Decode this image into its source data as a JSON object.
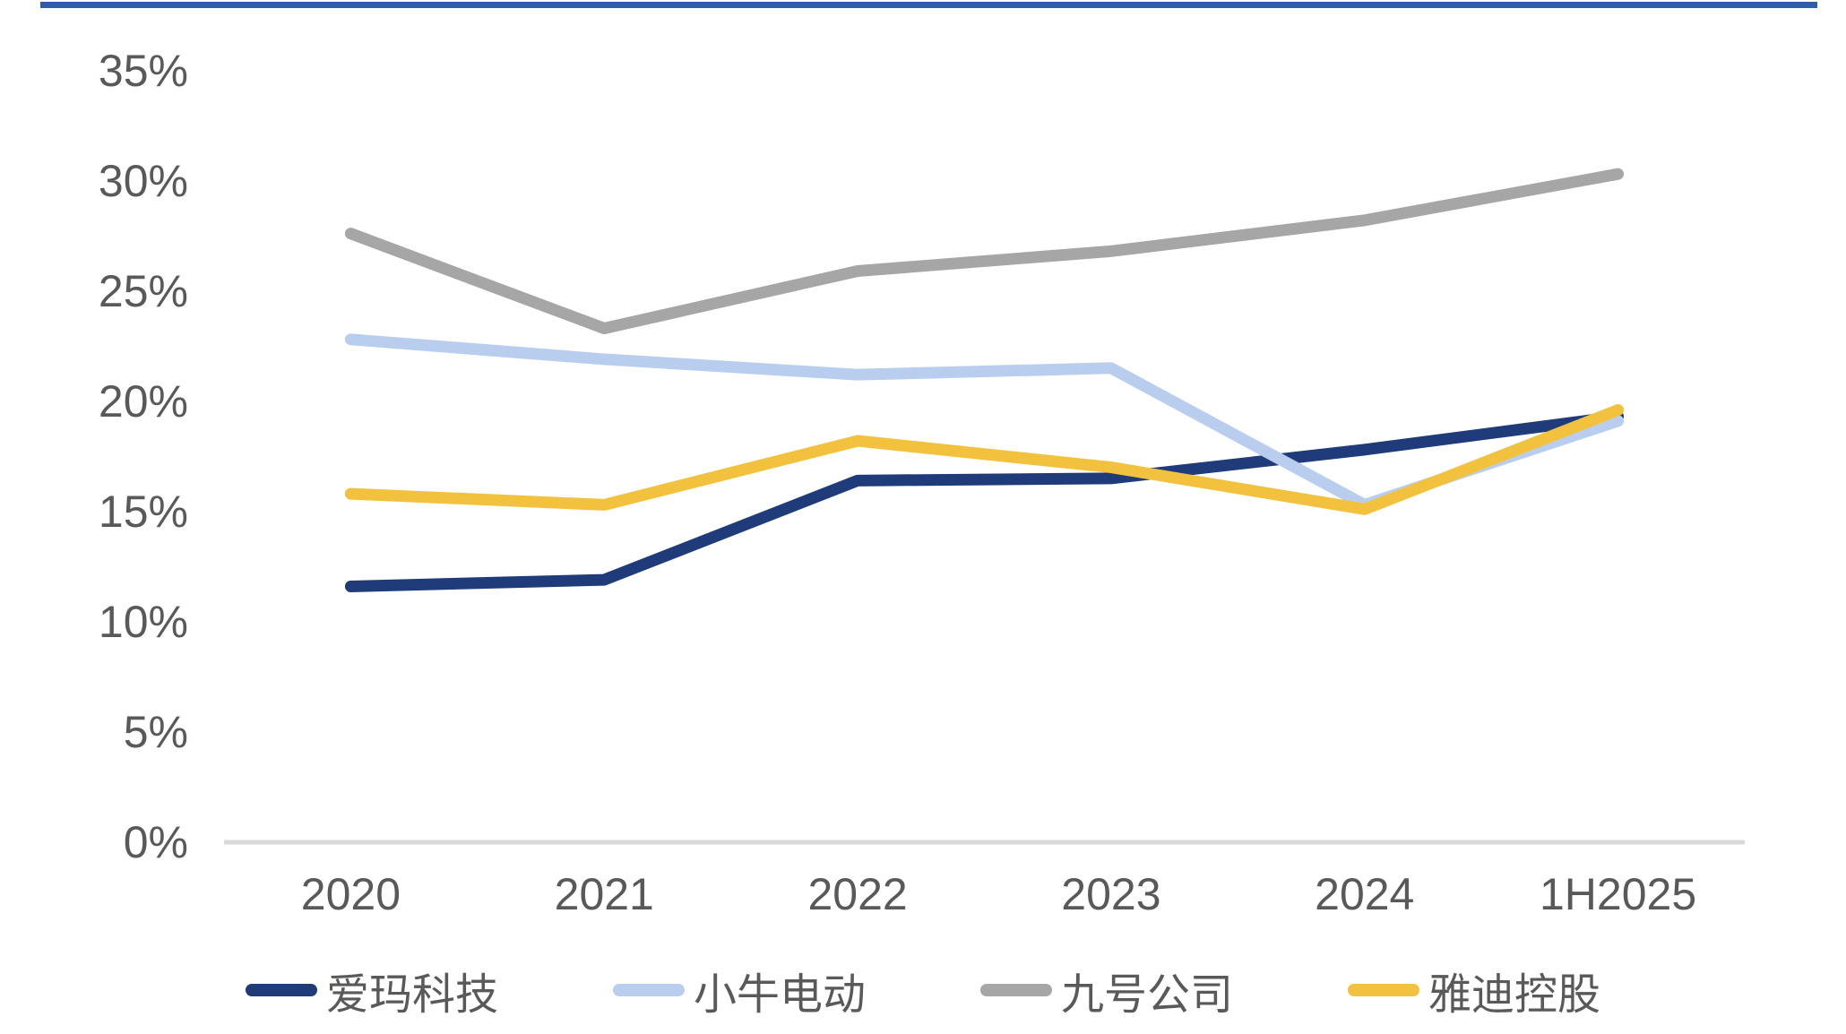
{
  "chart_data": {
    "type": "line",
    "x": [
      "2020",
      "2021",
      "2022",
      "2023",
      "2024",
      "1H2025"
    ],
    "series": [
      {
        "name": "爱玛科技",
        "color": "#1F3B7A",
        "values": [
          11.6,
          11.9,
          16.4,
          16.5,
          17.8,
          19.3
        ]
      },
      {
        "name": "小牛电动",
        "color": "#B9CEEF",
        "values": [
          22.8,
          21.9,
          21.2,
          21.5,
          15.3,
          19.1
        ]
      },
      {
        "name": "九号公司",
        "color": "#A6A6A6",
        "values": [
          27.6,
          23.3,
          25.9,
          26.8,
          28.2,
          30.3
        ]
      },
      {
        "name": "雅迪控股",
        "color": "#F2C23E",
        "values": [
          15.8,
          15.3,
          18.2,
          17.0,
          15.1,
          19.6
        ]
      }
    ],
    "title": "",
    "xlabel": "",
    "ylabel": "",
    "ylim": [
      0,
      35
    ],
    "ytick_labels": [
      "0%",
      "5%",
      "10%",
      "15%",
      "20%",
      "25%",
      "30%",
      "35%"
    ],
    "grid": false,
    "legend_position": "bottom"
  },
  "style": {
    "top_rule_color": "#2F5DA9",
    "axis_line_color": "#D9D9D9",
    "tick_label_color": "#595959",
    "line_width": 13,
    "background": "#FFFFFF"
  }
}
